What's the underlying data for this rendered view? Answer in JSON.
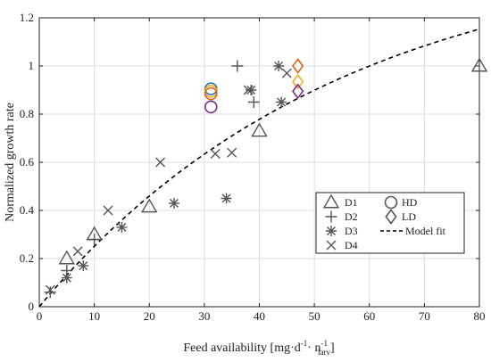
{
  "chart_data": {
    "type": "scatter",
    "xlabel": {
      "main": "Feed availability [mg·d",
      "sup1": "-1",
      "mid": "· n",
      "sup2": "-1",
      "sub": "larv",
      "end": "]"
    },
    "ylabel": "Normalized growth rate",
    "xlim": [
      0,
      80
    ],
    "ylim": [
      0,
      1.2
    ],
    "x_ticks": [
      0,
      10,
      20,
      30,
      40,
      50,
      60,
      70,
      80
    ],
    "x_tick_labels": [
      "0",
      "10",
      "20",
      "30",
      "40",
      "50",
      "60",
      "70",
      "80"
    ],
    "y_ticks": [
      0,
      0.2,
      0.4,
      0.6,
      0.8,
      1.0,
      1.2
    ],
    "y_tick_labels": [
      "0",
      "0.2",
      "0.4",
      "0.6",
      "0.8",
      "1",
      "1.2"
    ],
    "grid": true,
    "legend_position": "bottom-right",
    "legend": [
      {
        "label": "D1",
        "marker": "triangle"
      },
      {
        "label": "HD",
        "marker": "circle"
      },
      {
        "label": "D2",
        "marker": "plus"
      },
      {
        "label": "LD",
        "marker": "diamond"
      },
      {
        "label": "D3",
        "marker": "asterisk"
      },
      {
        "label": "Model fit",
        "marker": "dashed-line"
      },
      {
        "label": "D4",
        "marker": "cross"
      }
    ],
    "series": [
      {
        "name": "D1",
        "marker": "triangle",
        "color": "#555555",
        "points": [
          [
            5,
            0.2
          ],
          [
            10,
            0.3
          ],
          [
            20,
            0.415
          ],
          [
            40,
            0.73
          ],
          [
            80,
            1.0
          ]
        ]
      },
      {
        "name": "D2",
        "marker": "plus",
        "color": "#555555",
        "points": [
          [
            2,
            0.06
          ],
          [
            5,
            0.15
          ],
          [
            10,
            0.28
          ],
          [
            36,
            1.0
          ],
          [
            39,
            0.85
          ]
        ]
      },
      {
        "name": "D3",
        "marker": "asterisk",
        "color": "#555555",
        "points": [
          [
            5,
            0.12
          ],
          [
            8,
            0.17
          ],
          [
            15,
            0.33
          ],
          [
            24.5,
            0.43
          ],
          [
            34,
            0.45
          ],
          [
            38.5,
            0.9
          ],
          [
            43.5,
            1.0
          ],
          [
            44,
            0.85
          ]
        ]
      },
      {
        "name": "D4",
        "marker": "cross",
        "color": "#555555",
        "points": [
          [
            2,
            0.07
          ],
          [
            7,
            0.23
          ],
          [
            12.5,
            0.4
          ],
          [
            22,
            0.6
          ],
          [
            32,
            0.635
          ],
          [
            35,
            0.64
          ],
          [
            38,
            0.9
          ],
          [
            45,
            0.97
          ]
        ]
      },
      {
        "name": "HD",
        "marker": "circle",
        "points": [
          {
            "x": 31.2,
            "y": 0.905,
            "color": "#1f77b4"
          },
          {
            "x": 31.2,
            "y": 0.895,
            "color": "#f2b01e"
          },
          {
            "x": 31.2,
            "y": 0.885,
            "color": "#e0641a"
          },
          {
            "x": 31.2,
            "y": 0.83,
            "color": "#7b2d8e"
          }
        ]
      },
      {
        "name": "LD",
        "marker": "diamond",
        "points": [
          {
            "x": 47,
            "y": 1.0,
            "color": "#e0641a"
          },
          {
            "x": 47,
            "y": 0.935,
            "color": "#f2b01e"
          },
          {
            "x": 47,
            "y": 0.895,
            "color": "#7b2d8e"
          }
        ]
      }
    ],
    "model_fit": {
      "style": "dashed",
      "color": "#000000",
      "a": 1.5,
      "b": 0.0183
    }
  }
}
